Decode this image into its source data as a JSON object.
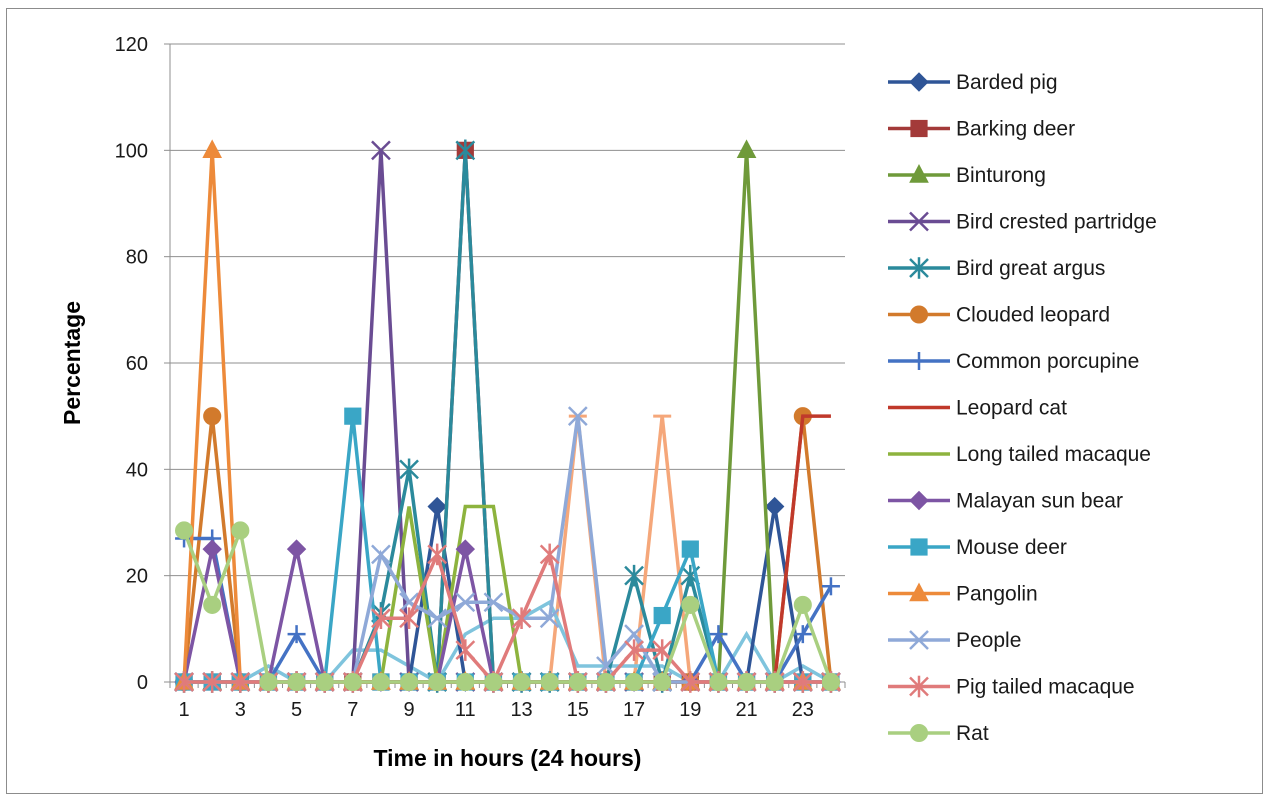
{
  "chart_data": {
    "type": "line",
    "title": "",
    "xlabel": "Time  in hours (24 hours)",
    "ylabel": "Percentage",
    "ylim": [
      0,
      120
    ],
    "yticks": [
      0,
      20,
      40,
      60,
      80,
      100,
      120
    ],
    "xticks": [
      1,
      3,
      5,
      7,
      9,
      11,
      13,
      15,
      17,
      19,
      21,
      23
    ],
    "x": [
      1,
      2,
      3,
      4,
      5,
      6,
      7,
      8,
      9,
      10,
      11,
      12,
      13,
      14,
      15,
      16,
      17,
      18,
      19,
      20,
      21,
      22,
      23,
      24
    ],
    "grid": "horizontal",
    "legend_position": "right",
    "series": [
      {
        "name": "Barded pig",
        "color": "#2f5597",
        "marker": "diamond",
        "values": [
          0,
          0,
          0,
          0,
          0,
          0,
          0,
          0,
          0,
          33,
          0,
          0,
          0,
          0,
          0,
          0,
          0,
          0,
          0,
          0,
          0,
          33,
          0,
          0
        ]
      },
      {
        "name": "Barking deer",
        "color": "#a33a39",
        "marker": "square",
        "values": [
          0,
          0,
          0,
          0,
          0,
          0,
          0,
          0,
          0,
          0,
          100,
          0,
          0,
          0,
          0,
          0,
          0,
          0,
          0,
          0,
          0,
          0,
          0,
          0
        ]
      },
      {
        "name": "Binturong",
        "color": "#6f9a3a",
        "marker": "triangle",
        "values": [
          0,
          0,
          0,
          0,
          0,
          0,
          0,
          0,
          0,
          0,
          0,
          0,
          0,
          0,
          0,
          0,
          0,
          0,
          0,
          0,
          100,
          0,
          0,
          0
        ]
      },
      {
        "name": "Bird crested partridge",
        "color": "#6a4c93",
        "marker": "x",
        "values": [
          0,
          0,
          0,
          0,
          0,
          0,
          0,
          100,
          0,
          0,
          0,
          0,
          0,
          0,
          0,
          0,
          0,
          0,
          0,
          0,
          0,
          0,
          0,
          0
        ]
      },
      {
        "name": "Bird great argus",
        "color": "#2b8a9c",
        "marker": "star",
        "values": [
          0,
          0,
          0,
          0,
          0,
          0,
          0,
          13,
          40,
          0,
          100,
          0,
          0,
          0,
          0,
          0,
          20,
          0,
          20,
          0,
          0,
          0,
          0,
          0
        ]
      },
      {
        "name": "Clouded leopard",
        "color": "#d27a2c",
        "marker": "circle",
        "values": [
          0,
          50,
          0,
          0,
          0,
          0,
          0,
          0,
          0,
          0,
          0,
          0,
          0,
          0,
          0,
          0,
          0,
          0,
          0,
          0,
          0,
          0,
          50,
          0
        ]
      },
      {
        "name": "Common porcupine",
        "color": "#4472c4",
        "marker": "plus",
        "values": [
          27,
          27,
          0,
          0,
          9,
          0,
          0,
          0,
          0,
          0,
          0,
          0,
          0,
          0,
          0,
          0,
          0,
          0,
          0,
          9,
          0,
          0,
          9,
          18
        ]
      },
      {
        "name": "Leopard cat",
        "color": "#c0392b",
        "marker": "none",
        "values": [
          0,
          0,
          0,
          0,
          0,
          0,
          0,
          0,
          0,
          0,
          0,
          0,
          0,
          0,
          0,
          0,
          0,
          0,
          0,
          0,
          0,
          0,
          50,
          50
        ]
      },
      {
        "name": "Long tailed macaque",
        "color": "#8db33e",
        "marker": "none",
        "values": [
          0,
          0,
          0,
          0,
          0,
          0,
          0,
          0,
          33,
          0,
          33,
          33,
          0,
          0,
          0,
          0,
          0,
          0,
          0,
          0,
          0,
          0,
          0,
          0
        ]
      },
      {
        "name": "Malayan sun bear",
        "color": "#7d55a4",
        "marker": "diamond",
        "values": [
          0,
          25,
          0,
          0,
          25,
          0,
          0,
          0,
          0,
          0,
          25,
          0,
          0,
          0,
          0,
          0,
          0,
          0,
          0,
          0,
          0,
          0,
          0,
          0
        ]
      },
      {
        "name": "Mouse deer",
        "color": "#3aa6c6",
        "marker": "square",
        "values": [
          0,
          0,
          0,
          0,
          0,
          0,
          50,
          0,
          0,
          0,
          0,
          0,
          0,
          0,
          0,
          0,
          0,
          12.5,
          25,
          0,
          0,
          0,
          0,
          0
        ]
      },
      {
        "name": "Pangolin",
        "color": "#ed8a3a",
        "marker": "triangle",
        "values": [
          0,
          100,
          0,
          0,
          0,
          0,
          0,
          0,
          0,
          0,
          0,
          0,
          0,
          0,
          0,
          0,
          0,
          0,
          0,
          0,
          0,
          0,
          0,
          0
        ]
      },
      {
        "name": "People",
        "color": "#8fa9d8",
        "marker": "x",
        "values": [
          0,
          0,
          0,
          0,
          0,
          0,
          0,
          24,
          15,
          12,
          15,
          15,
          12,
          12,
          50,
          3,
          9,
          0,
          0,
          0,
          0,
          0,
          0,
          0
        ]
      },
      {
        "name": "Pig tailed macaque",
        "color": "#e07b7b",
        "marker": "star",
        "values": [
          0,
          0,
          0,
          0,
          0,
          0,
          0,
          12,
          12,
          24,
          6,
          0,
          12,
          24,
          0,
          0,
          6,
          6,
          0,
          0,
          0,
          0,
          0,
          0
        ]
      },
      {
        "name": "Rat",
        "color": "#a9cf80",
        "marker": "circle",
        "values": [
          28.5,
          14.5,
          28.5,
          0,
          0,
          0,
          0,
          0,
          0,
          0,
          0,
          0,
          0,
          0,
          0,
          0,
          0,
          0,
          14.5,
          0,
          0,
          0,
          14.5,
          0
        ]
      },
      {
        "name": "",
        "color": "#f5a77a",
        "marker": "dash",
        "in_legend": false,
        "values": [
          0,
          0,
          0,
          0,
          0,
          0,
          0,
          0,
          0,
          0,
          0,
          0,
          0,
          0,
          50,
          0,
          0,
          50,
          0,
          0,
          0,
          0,
          0,
          0
        ]
      },
      {
        "name": "",
        "color": "#7fc4dd",
        "marker": "none",
        "in_legend": false,
        "values": [
          0,
          0,
          0,
          3,
          0,
          0,
          6,
          6,
          3,
          0,
          9,
          12,
          12,
          15,
          3,
          3,
          3,
          3,
          0,
          0,
          9,
          0,
          3,
          0
        ]
      }
    ]
  }
}
